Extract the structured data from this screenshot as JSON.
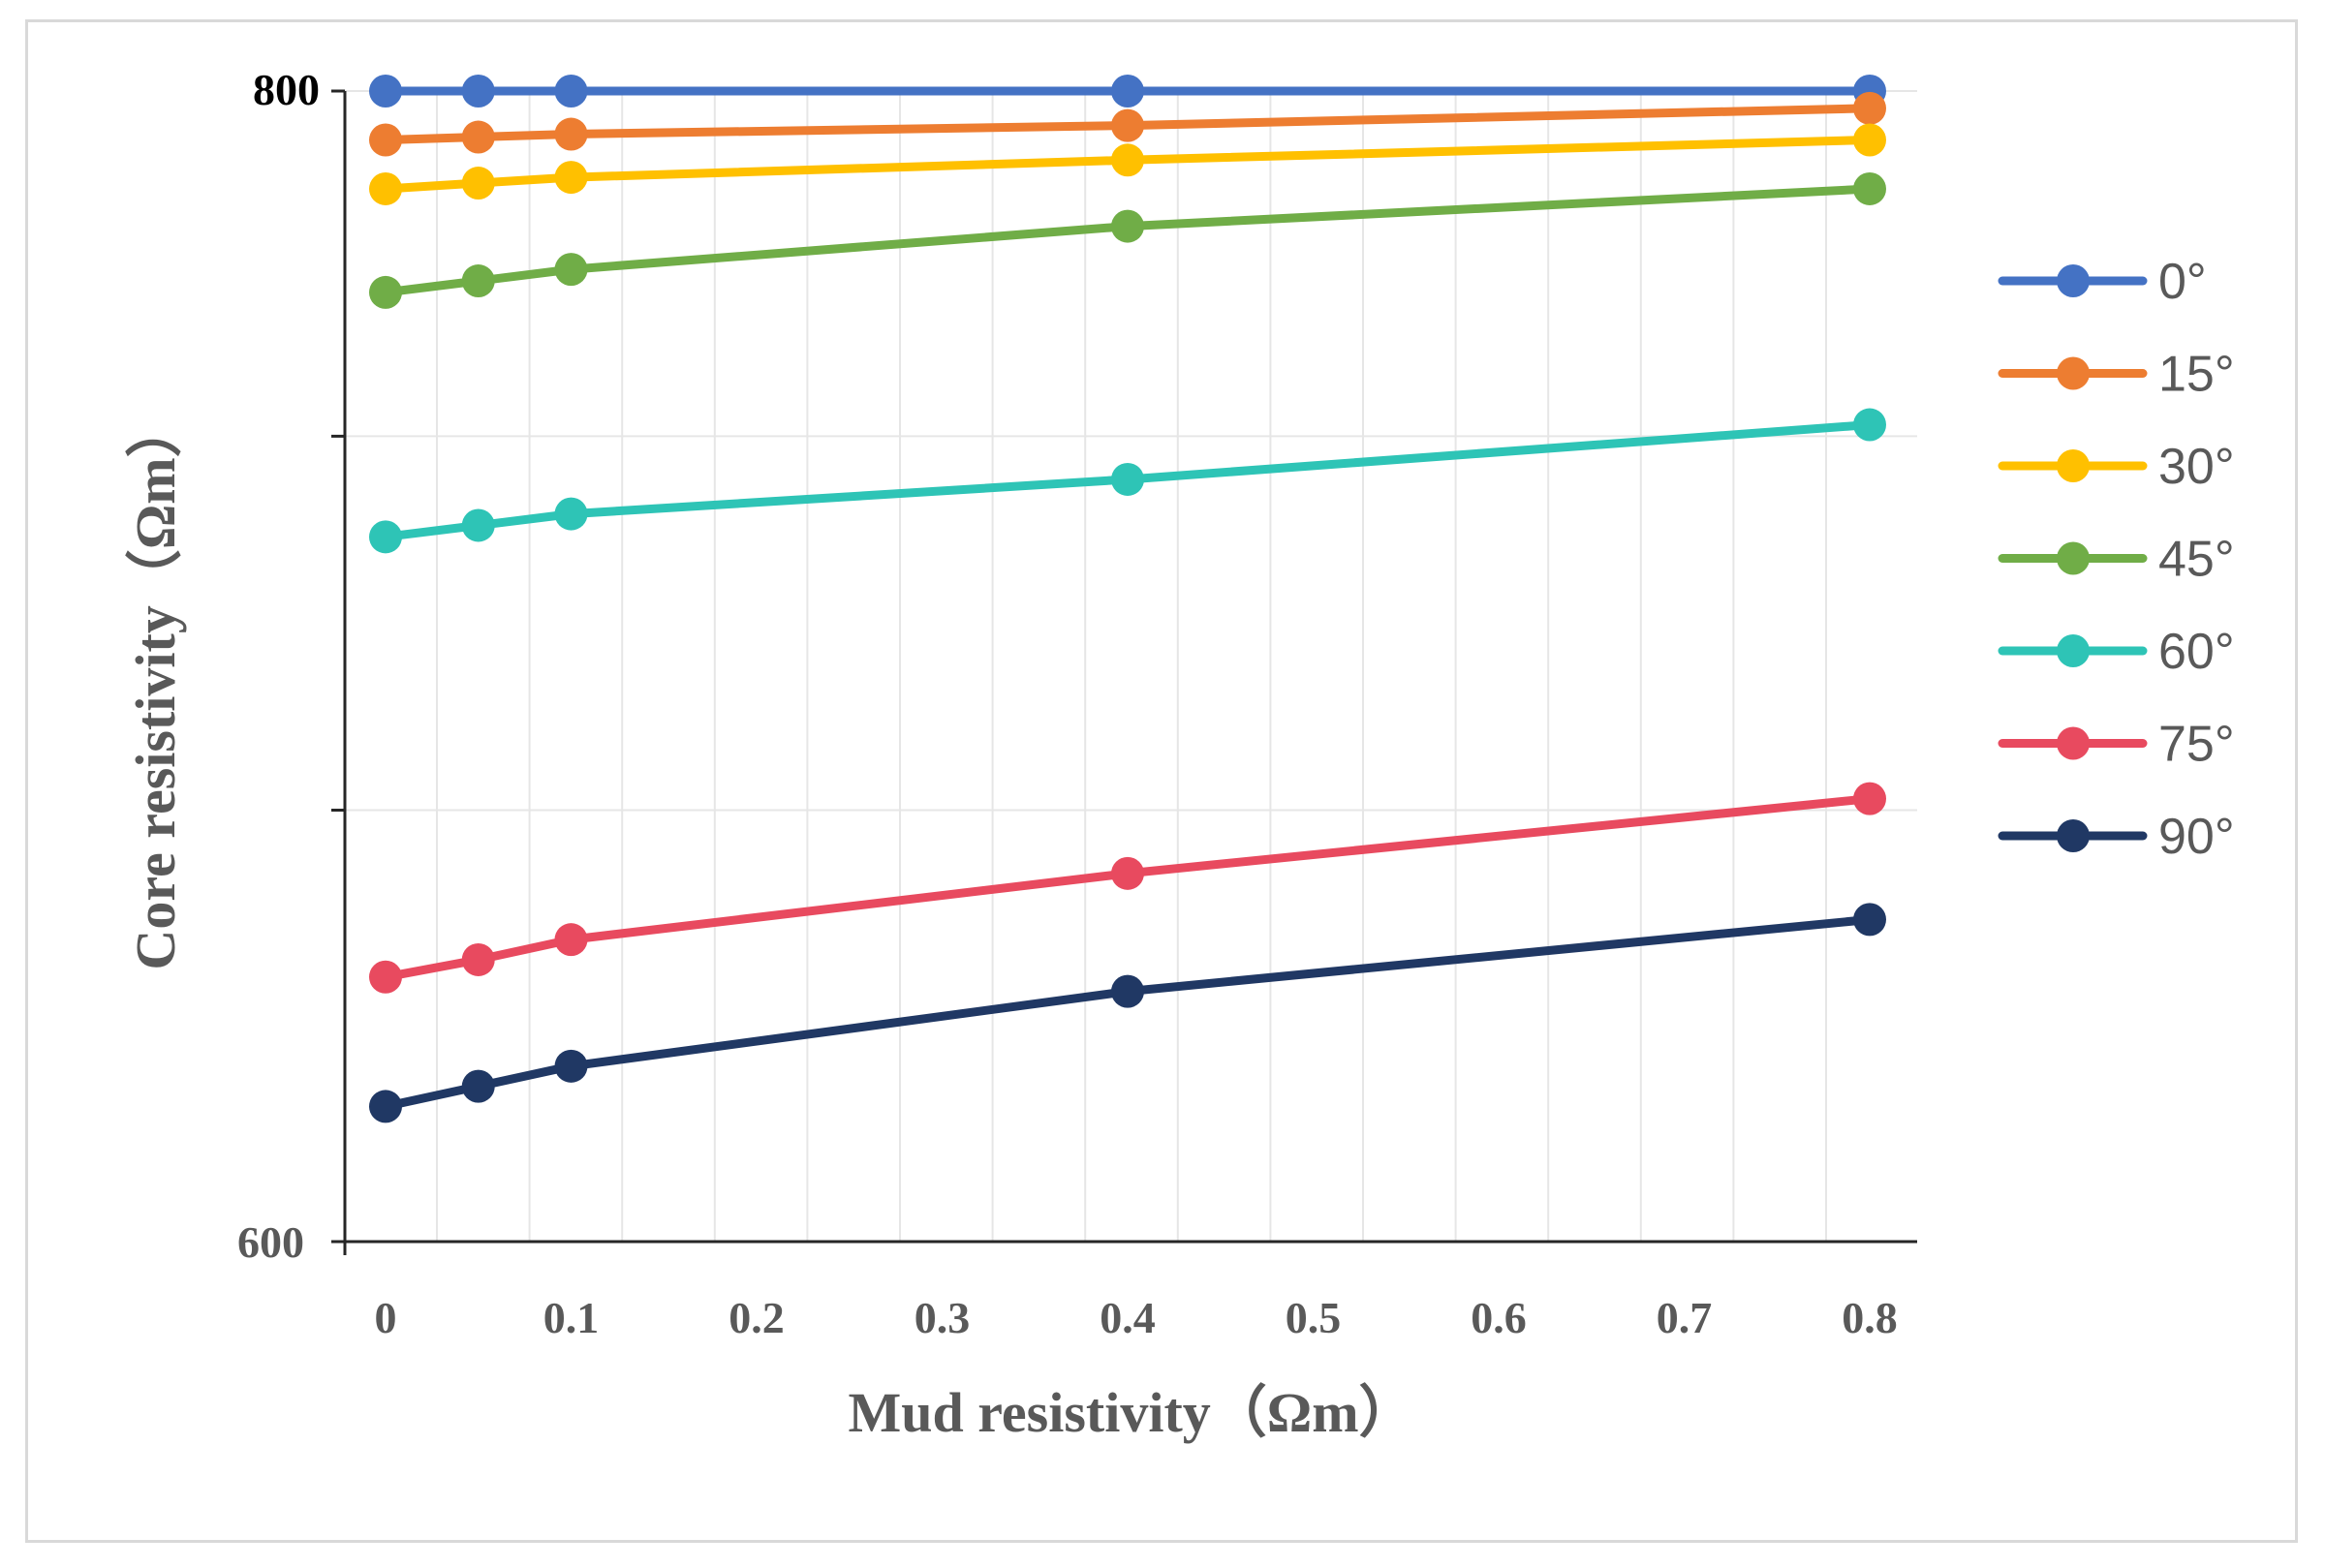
{
  "chart_data": {
    "type": "line",
    "title": "",
    "xlabel": "Mud resistivity（Ωm）",
    "ylabel": "Core resistivity（Ωm）",
    "x": [
      0,
      0.05,
      0.1,
      0.4,
      0.8
    ],
    "xlim": [
      0,
      0.8
    ],
    "ylim": [
      600,
      800
    ],
    "x_ticks": [
      "0",
      "0.1",
      "0.2",
      "0.3",
      "0.4",
      "0.5",
      "0.6",
      "0.7",
      "0.8"
    ],
    "y_ticks": [
      "600",
      "800"
    ],
    "grid": true,
    "legend_position": "right",
    "series": [
      {
        "name": "0°",
        "color": "#4472c4",
        "values": [
          800,
          800,
          800,
          800,
          800
        ]
      },
      {
        "name": "15°",
        "color": "#ed7d31",
        "values": [
          791.5,
          792,
          792.5,
          794,
          797
        ]
      },
      {
        "name": "30°",
        "color": "#ffc000",
        "values": [
          783,
          784,
          785,
          788,
          791.5
        ]
      },
      {
        "name": "45°",
        "color": "#70ad47",
        "values": [
          765,
          767,
          769,
          776.5,
          783
        ]
      },
      {
        "name": "60°",
        "color": "#2ec4b6",
        "values": [
          722.5,
          724.5,
          726.5,
          732.5,
          742
        ]
      },
      {
        "name": "75°",
        "color": "#e84a5f",
        "values": [
          646,
          649,
          652.5,
          664,
          677
        ]
      },
      {
        "name": "90°",
        "color": "#203864",
        "values": [
          623.5,
          627,
          630.5,
          643.5,
          656
        ]
      }
    ]
  }
}
